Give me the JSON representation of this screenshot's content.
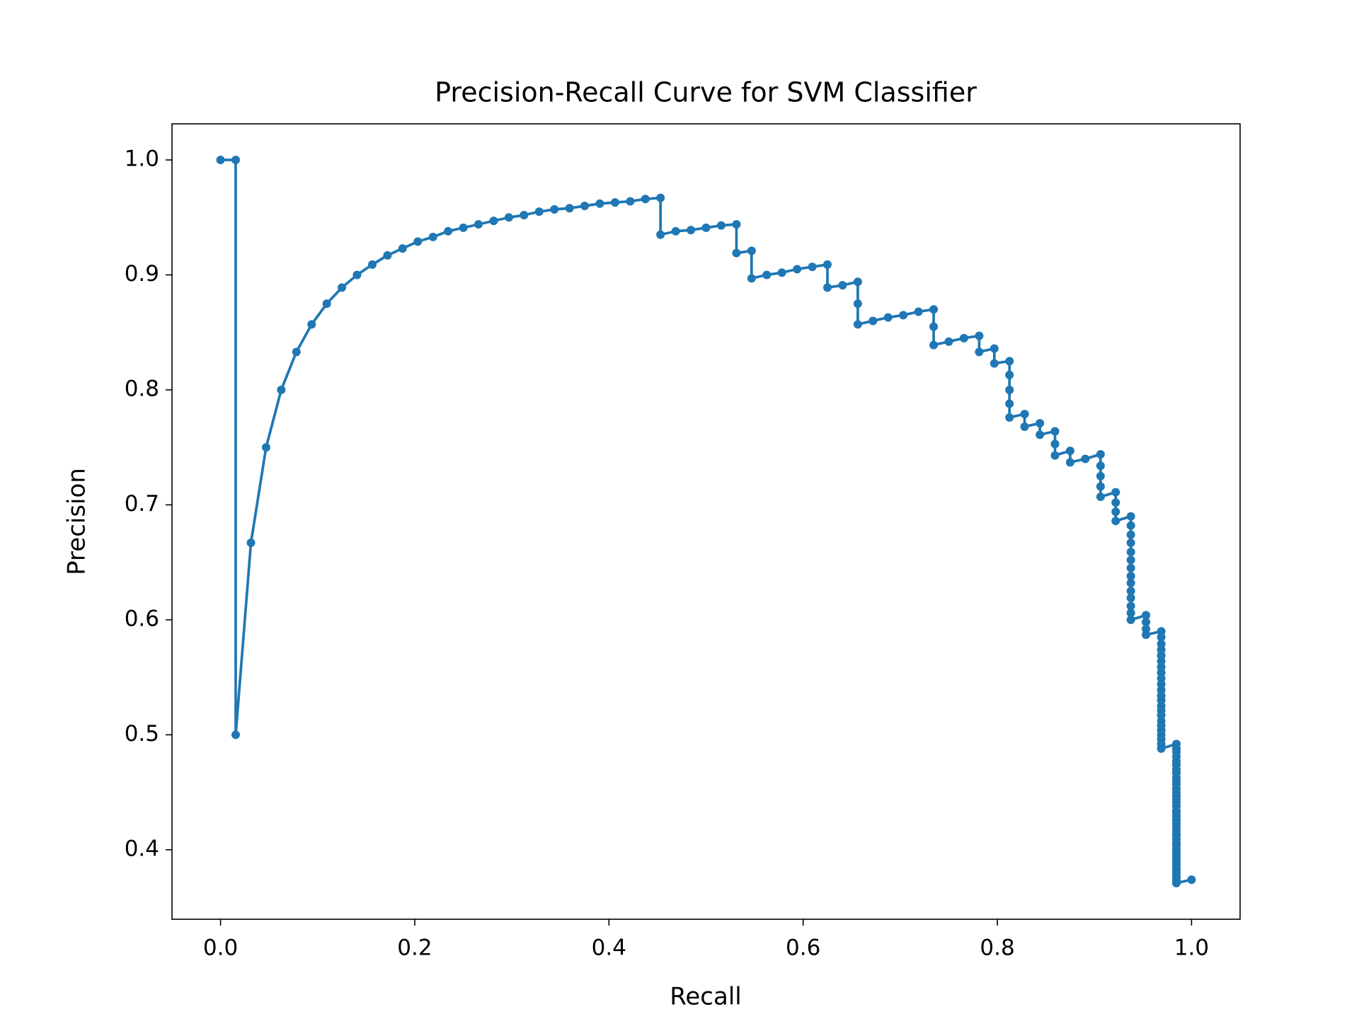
{
  "chart_data": {
    "type": "line",
    "title": "Precision-Recall Curve for SVM Classifier",
    "x_label": "Recall",
    "y_label": "Precision",
    "color": "#1f77b4",
    "markers": true,
    "xlim": [
      -0.05,
      1.05
    ],
    "ylim": [
      0.3396,
      1.0314
    ],
    "xticks": [
      {
        "value": 0,
        "label": "0.0"
      },
      0.2,
      0.4,
      0.6,
      0.8,
      {
        "value": 1,
        "label": "1.0"
      }
    ],
    "yticks": [
      0.4,
      0.5,
      0.6,
      0.7,
      0.8,
      0.9,
      {
        "value": 1,
        "label": "1.0"
      }
    ],
    "x": [
      0,
      0.0156,
      0.0156,
      0.0313,
      0.0469,
      0.0625,
      0.0781,
      0.0938,
      0.1094,
      0.125,
      0.1406,
      0.1563,
      0.1719,
      0.1875,
      0.2031,
      0.2188,
      0.2344,
      0.25,
      0.2656,
      0.2813,
      0.2969,
      0.3125,
      0.3281,
      0.3438,
      0.3594,
      0.375,
      0.3906,
      0.4063,
      0.4219,
      0.4375,
      0.4531,
      0.4531,
      0.4688,
      0.4844,
      0.5,
      0.5156,
      0.5313,
      0.5313,
      0.5469,
      0.5469,
      0.5625,
      0.5781,
      0.5938,
      0.6094,
      0.625,
      0.625,
      0.6406,
      0.6563,
      0.6563,
      0.6563,
      0.6719,
      0.6875,
      0.7031,
      0.7188,
      0.7344,
      0.7344,
      0.7344,
      0.75,
      0.7656,
      0.7813,
      0.7813,
      0.7969,
      0.7969,
      0.8125,
      0.8125,
      0.8125,
      0.8125,
      0.8125,
      0.8281,
      0.8281,
      0.8438,
      0.8438,
      0.8594,
      0.8594,
      0.8594,
      0.875,
      0.875,
      0.8906,
      0.9063,
      0.9063,
      0.9063,
      0.9063,
      0.9063,
      0.9219,
      0.9219,
      0.9219,
      0.9219,
      0.9375,
      0.9375,
      0.9375,
      0.9375,
      0.9375,
      0.9375,
      0.9375,
      0.9375,
      0.9375,
      0.9375,
      0.9375,
      0.9375,
      0.9375,
      0.9375,
      0.9531,
      0.9531,
      0.9531,
      0.9531,
      0.9688,
      0.9688,
      0.9688,
      0.9688,
      0.9688,
      0.9688,
      0.9688,
      0.9688,
      0.9688,
      0.9688,
      0.9688,
      0.9688,
      0.9688,
      0.9688,
      0.9688,
      0.9688,
      0.9688,
      0.9688,
      0.9688,
      0.9688,
      0.9688,
      0.9688,
      0.9688,
      0.9844,
      0.9844,
      0.9844,
      0.9844,
      0.9844,
      0.9844,
      0.9844,
      0.9844,
      0.9844,
      0.9844,
      0.9844,
      0.9844,
      0.9844,
      0.9844,
      0.9844,
      0.9844,
      0.9844,
      0.9844,
      0.9844,
      0.9844,
      0.9844,
      0.9844,
      0.9844,
      0.9844,
      0.9844,
      0.9844,
      0.9844,
      0.9844,
      0.9844,
      0.9844,
      0.9844,
      0.9844,
      0.9844,
      0.9844,
      0.9844,
      0.9844,
      0.9844,
      0.9844,
      0.9844,
      0.9844,
      0.9844,
      0.9844,
      0.9844,
      1.0
    ],
    "values": [
      1.0,
      1.0,
      0.5,
      0.667,
      0.75,
      0.8,
      0.833,
      0.857,
      0.875,
      0.889,
      0.9,
      0.909,
      0.917,
      0.923,
      0.929,
      0.933,
      0.938,
      0.941,
      0.944,
      0.947,
      0.95,
      0.952,
      0.955,
      0.957,
      0.958,
      0.96,
      0.962,
      0.963,
      0.964,
      0.966,
      0.967,
      0.935,
      0.938,
      0.939,
      0.941,
      0.943,
      0.944,
      0.919,
      0.921,
      0.897,
      0.9,
      0.902,
      0.905,
      0.907,
      0.909,
      0.889,
      0.891,
      0.894,
      0.875,
      0.857,
      0.86,
      0.863,
      0.865,
      0.868,
      0.87,
      0.855,
      0.839,
      0.842,
      0.845,
      0.847,
      0.833,
      0.836,
      0.823,
      0.825,
      0.813,
      0.8,
      0.788,
      0.776,
      0.779,
      0.768,
      0.771,
      0.761,
      0.764,
      0.753,
      0.743,
      0.747,
      0.737,
      0.74,
      0.744,
      0.734,
      0.725,
      0.716,
      0.707,
      0.711,
      0.702,
      0.694,
      0.686,
      0.69,
      0.682,
      0.674,
      0.667,
      0.659,
      0.652,
      0.645,
      0.638,
      0.632,
      0.625,
      0.619,
      0.612,
      0.606,
      0.6,
      0.604,
      0.598,
      0.592,
      0.587,
      0.59,
      0.585,
      0.579,
      0.574,
      0.569,
      0.564,
      0.559,
      0.554,
      0.549,
      0.544,
      0.539,
      0.534,
      0.53,
      0.525,
      0.521,
      0.517,
      0.512,
      0.508,
      0.504,
      0.5,
      0.496,
      0.492,
      0.488,
      0.492,
      0.488,
      0.485,
      0.481,
      0.477,
      0.474,
      0.47,
      0.467,
      0.463,
      0.46,
      0.457,
      0.453,
      0.45,
      0.447,
      0.444,
      0.441,
      0.438,
      0.434,
      0.432,
      0.429,
      0.426,
      0.423,
      0.42,
      0.417,
      0.414,
      0.412,
      0.409,
      0.406,
      0.404,
      0.401,
      0.399,
      0.396,
      0.394,
      0.391,
      0.389,
      0.387,
      0.384,
      0.382,
      0.38,
      0.377,
      0.375,
      0.373,
      0.371,
      0.374
    ]
  }
}
